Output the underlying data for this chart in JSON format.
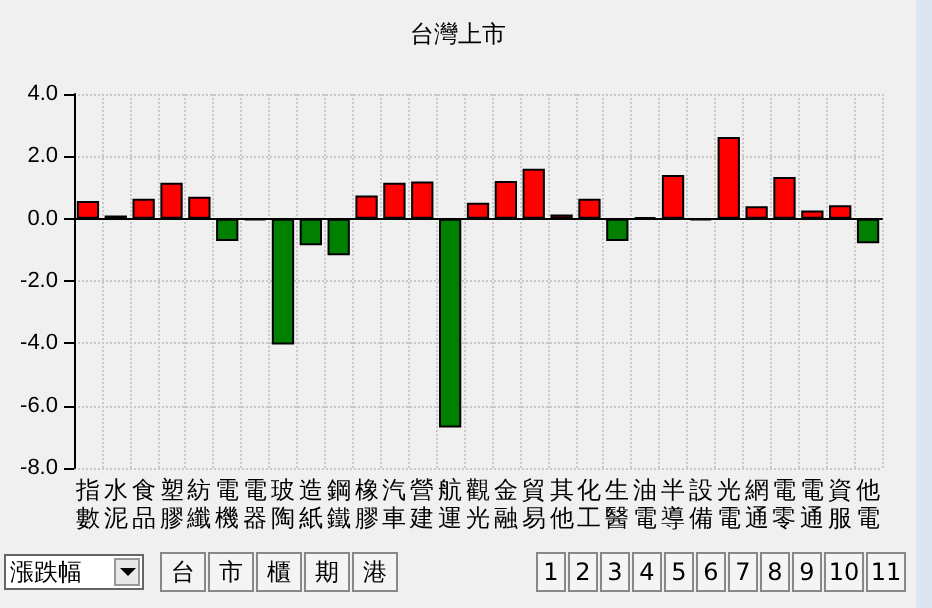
{
  "chart_data": {
    "type": "bar",
    "title": "台灣上市",
    "categories": [
      "指數",
      "水泥",
      "食品",
      "塑膠",
      "紡纖",
      "電機",
      "電器",
      "玻陶",
      "造紙",
      "鋼鐵",
      "橡膠",
      "汽車",
      "營建",
      "航運",
      "觀光",
      "金融",
      "貿易",
      "其他",
      "化工",
      "生醫",
      "油電",
      "半導",
      "設備",
      "光電",
      "網通",
      "電零",
      "電通",
      "資服",
      "他電"
    ],
    "values": [
      0.57,
      0.1,
      0.64,
      1.15,
      0.7,
      -0.72,
      -0.05,
      -4.04,
      -0.85,
      -1.17,
      0.74,
      1.15,
      1.19,
      -6.7,
      0.51,
      1.21,
      1.6,
      0.13,
      0.64,
      -0.72,
      0.05,
      1.4,
      -0.05,
      2.62,
      0.4,
      1.34,
      0.26,
      0.43,
      -0.79
    ],
    "colors": [
      "#ff0000",
      "#ff0000",
      "#ff0000",
      "#ff0000",
      "#ff0000",
      "#007f00",
      "#000000",
      "#007f00",
      "#007f00",
      "#007f00",
      "#ff0000",
      "#ff0000",
      "#ff0000",
      "#007f00",
      "#ff0000",
      "#ff0000",
      "#ff0000",
      "#ff0000",
      "#ff0000",
      "#007f00",
      "#000000",
      "#ff0000",
      "#000000",
      "#ff0000",
      "#ff0000",
      "#ff0000",
      "#ff0000",
      "#ff0000",
      "#007f00"
    ],
    "ylim": [
      -8,
      4
    ],
    "yticks": [
      {
        "value": -8,
        "label": "-8.0"
      },
      {
        "value": -6,
        "label": "-6.0"
      },
      {
        "value": -4,
        "label": "-4.0"
      },
      {
        "value": -2,
        "label": "-2.0"
      },
      {
        "value": 0,
        "label": "0.0"
      },
      {
        "value": 2,
        "label": "2.0"
      },
      {
        "value": 4,
        "label": "4.0"
      }
    ],
    "grid": true,
    "annotations": [
      "漲跌幅",
      "台",
      "市",
      "櫃",
      "期",
      "港",
      "1",
      "2",
      "3",
      "4",
      "5",
      "6",
      "7",
      "8",
      "9",
      "10",
      "11"
    ]
  }
}
